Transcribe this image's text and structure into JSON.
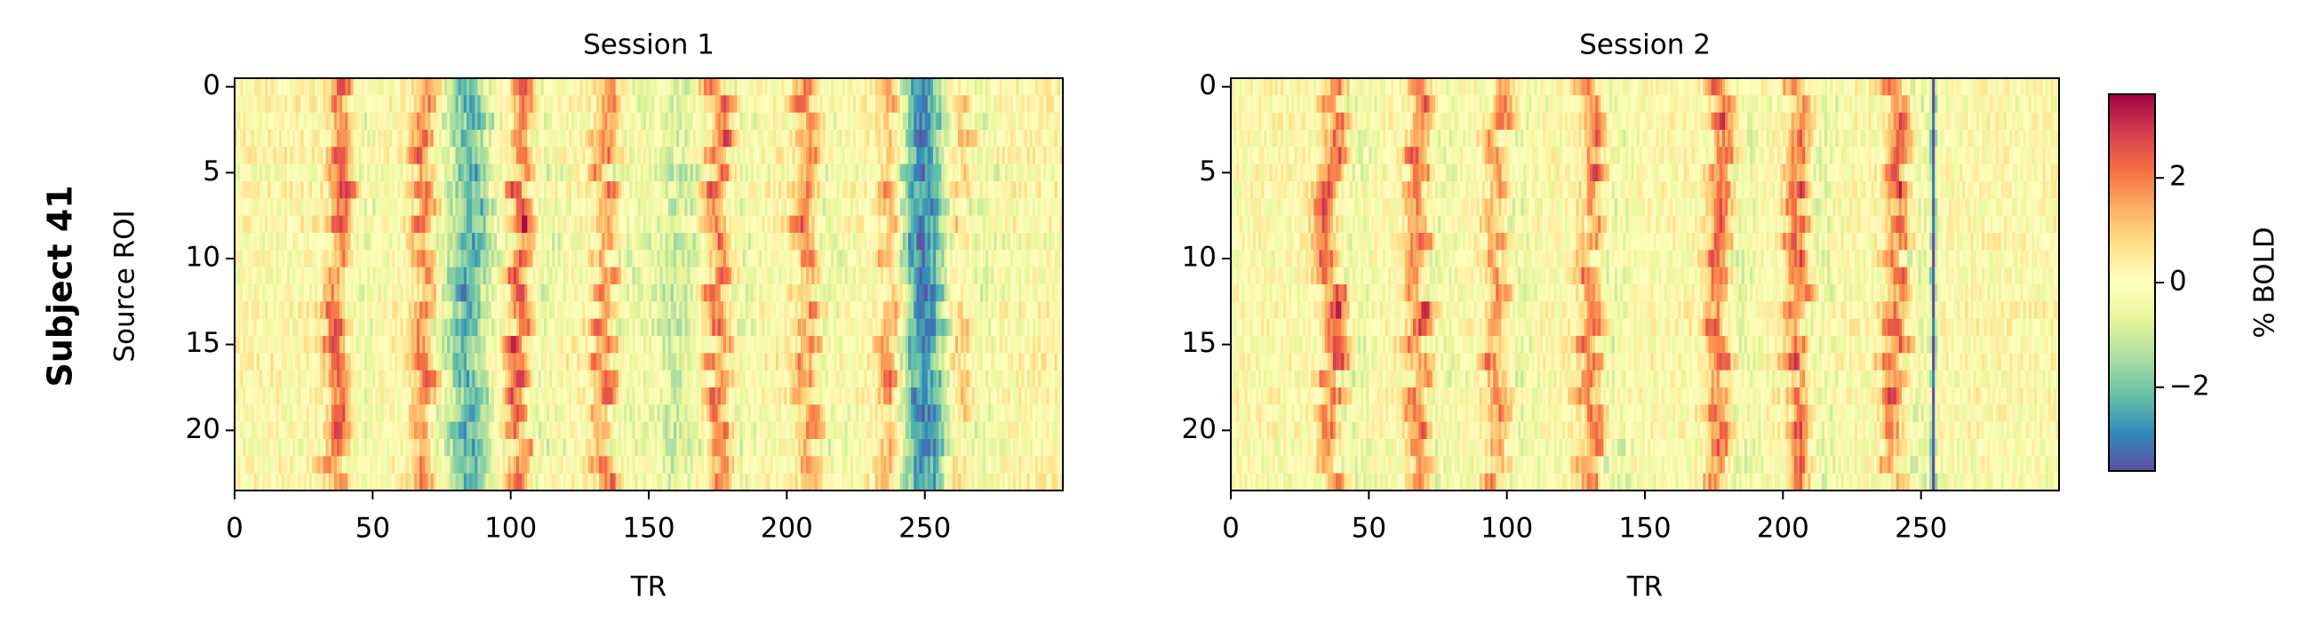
{
  "figure": {
    "row_label": "Subject 41"
  },
  "colorbar": {
    "label": "% BOLD",
    "vmin": -3.6,
    "vmax": 3.6,
    "ticks": [
      {
        "value": 2,
        "label": "2"
      },
      {
        "value": 0,
        "label": "0"
      },
      {
        "value": -2,
        "label": "−2"
      }
    ],
    "colormap": "Spectral_r",
    "colormap_stops": [
      "#5e4fa2",
      "#3288bd",
      "#66c2a5",
      "#abdda4",
      "#e6f598",
      "#ffffbf",
      "#fee08b",
      "#fdae61",
      "#f46d43",
      "#d53e4f",
      "#9e0142"
    ]
  },
  "chart_data": [
    {
      "type": "heatmap",
      "title": "Session 1",
      "xlabel": "TR",
      "ylabel": "Source ROI",
      "xlim": [
        0,
        300
      ],
      "ylim": [
        23.5,
        -0.5
      ],
      "n_rows": 24,
      "n_cols": 300,
      "xticks": [
        0,
        50,
        100,
        150,
        200,
        250
      ],
      "yticks": [
        0,
        5,
        10,
        15,
        20
      ],
      "peak_bands": [
        {
          "tr": 37,
          "amplitude": 2.4,
          "width": 3.0
        },
        {
          "tr": 68,
          "amplitude": 2.0,
          "width": 3.0
        },
        {
          "tr": 103,
          "amplitude": 2.6,
          "width": 2.5
        },
        {
          "tr": 133,
          "amplitude": 2.0,
          "width": 3.0
        },
        {
          "tr": 175,
          "amplitude": 2.2,
          "width": 3.0
        },
        {
          "tr": 207,
          "amplitude": 2.0,
          "width": 3.0
        },
        {
          "tr": 237,
          "amplitude": 1.8,
          "width": 3.0
        },
        {
          "tr": 262,
          "amplitude": 1.2,
          "width": 3.0
        }
      ],
      "trough_bands": [
        {
          "tr": 85,
          "amplitude": -2.2,
          "width": 5.0
        },
        {
          "tr": 250,
          "amplitude": -2.6,
          "width": 6.0
        },
        {
          "tr": 160,
          "amplitude": -1.0,
          "width": 6.0
        }
      ]
    },
    {
      "type": "heatmap",
      "title": "Session 2",
      "xlabel": "TR",
      "ylabel": "",
      "xlim": [
        0,
        300
      ],
      "ylim": [
        23.5,
        -0.5
      ],
      "n_rows": 24,
      "n_cols": 300,
      "xticks": [
        0,
        50,
        100,
        150,
        200,
        250
      ],
      "yticks": [
        0,
        5,
        10,
        15,
        20
      ],
      "peak_bands": [
        {
          "tr": 36,
          "amplitude": 2.5,
          "width": 3.0
        },
        {
          "tr": 67,
          "amplitude": 2.3,
          "width": 3.0
        },
        {
          "tr": 96,
          "amplitude": 1.8,
          "width": 3.0
        },
        {
          "tr": 130,
          "amplitude": 2.2,
          "width": 3.0
        },
        {
          "tr": 176,
          "amplitude": 2.3,
          "width": 3.0
        },
        {
          "tr": 205,
          "amplitude": 2.3,
          "width": 3.0
        },
        {
          "tr": 240,
          "amplitude": 2.4,
          "width": 3.0
        }
      ],
      "trough_bands": [
        {
          "tr": 254,
          "amplitude": -3.2,
          "width": 0.6
        }
      ]
    }
  ]
}
